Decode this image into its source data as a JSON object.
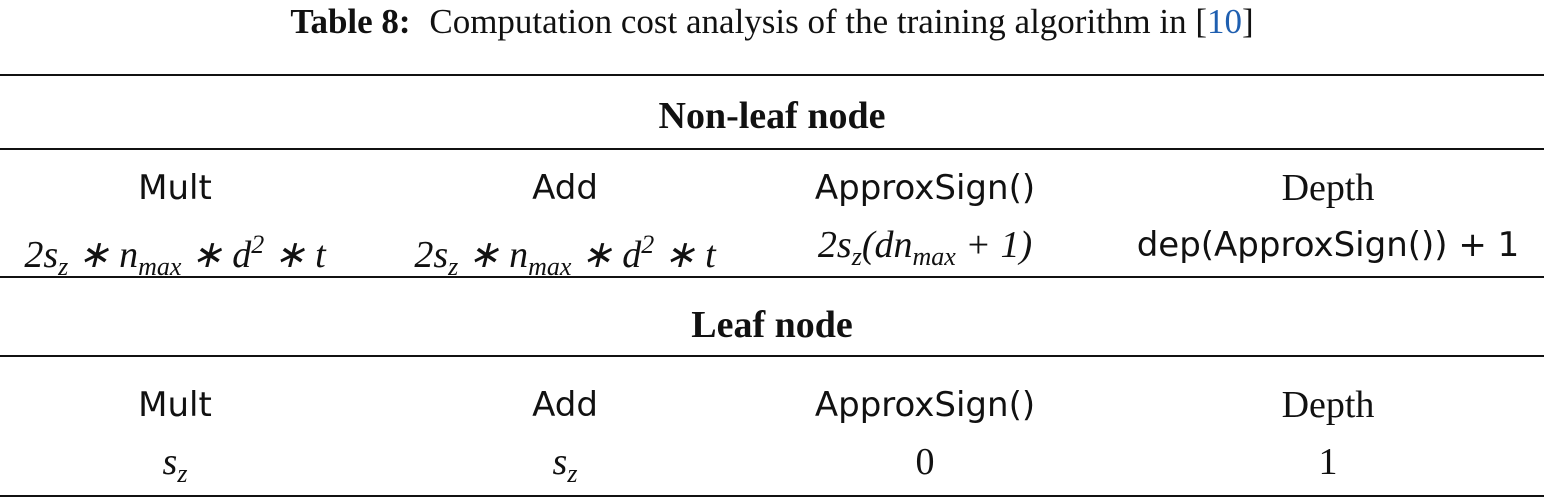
{
  "caption": {
    "label": "Table 8:",
    "text": "Computation cost analysis of the training algorithm in",
    "open": "[",
    "citation": "10",
    "close": "]"
  },
  "sections": [
    {
      "title": "Non-leaf node",
      "header": [
        "Mult",
        "Add",
        "ApproxSign()",
        "Depth"
      ],
      "values": [
        [
          {
            "t": "2s"
          },
          {
            "sub": "z"
          },
          {
            "t": " ∗ n"
          },
          {
            "sub": "max"
          },
          {
            "t": " ∗ d"
          },
          {
            "sup": "2"
          },
          {
            "t": " ∗ t"
          }
        ],
        [
          {
            "t": "2s"
          },
          {
            "sub": "z"
          },
          {
            "t": " ∗ n"
          },
          {
            "sub": "max"
          },
          {
            "t": " ∗ d"
          },
          {
            "sup": "2"
          },
          {
            "t": " ∗ t"
          }
        ],
        [
          {
            "t": "2s"
          },
          {
            "sub": "z"
          },
          {
            "t": "(dn"
          },
          {
            "sub": "max"
          },
          {
            "t": " + 1)"
          }
        ],
        [
          {
            "t": "dep(ApproxSign()) + 1"
          }
        ]
      ]
    },
    {
      "title": "Leaf node",
      "header": [
        "Mult",
        "Add",
        "ApproxSign()",
        "Depth"
      ],
      "values": [
        [
          {
            "t": "s"
          },
          {
            "sub": "z"
          }
        ],
        [
          {
            "t": "s"
          },
          {
            "sub": "z"
          }
        ],
        [
          {
            "t": "0"
          }
        ],
        [
          {
            "t": "1"
          }
        ]
      ]
    }
  ]
}
